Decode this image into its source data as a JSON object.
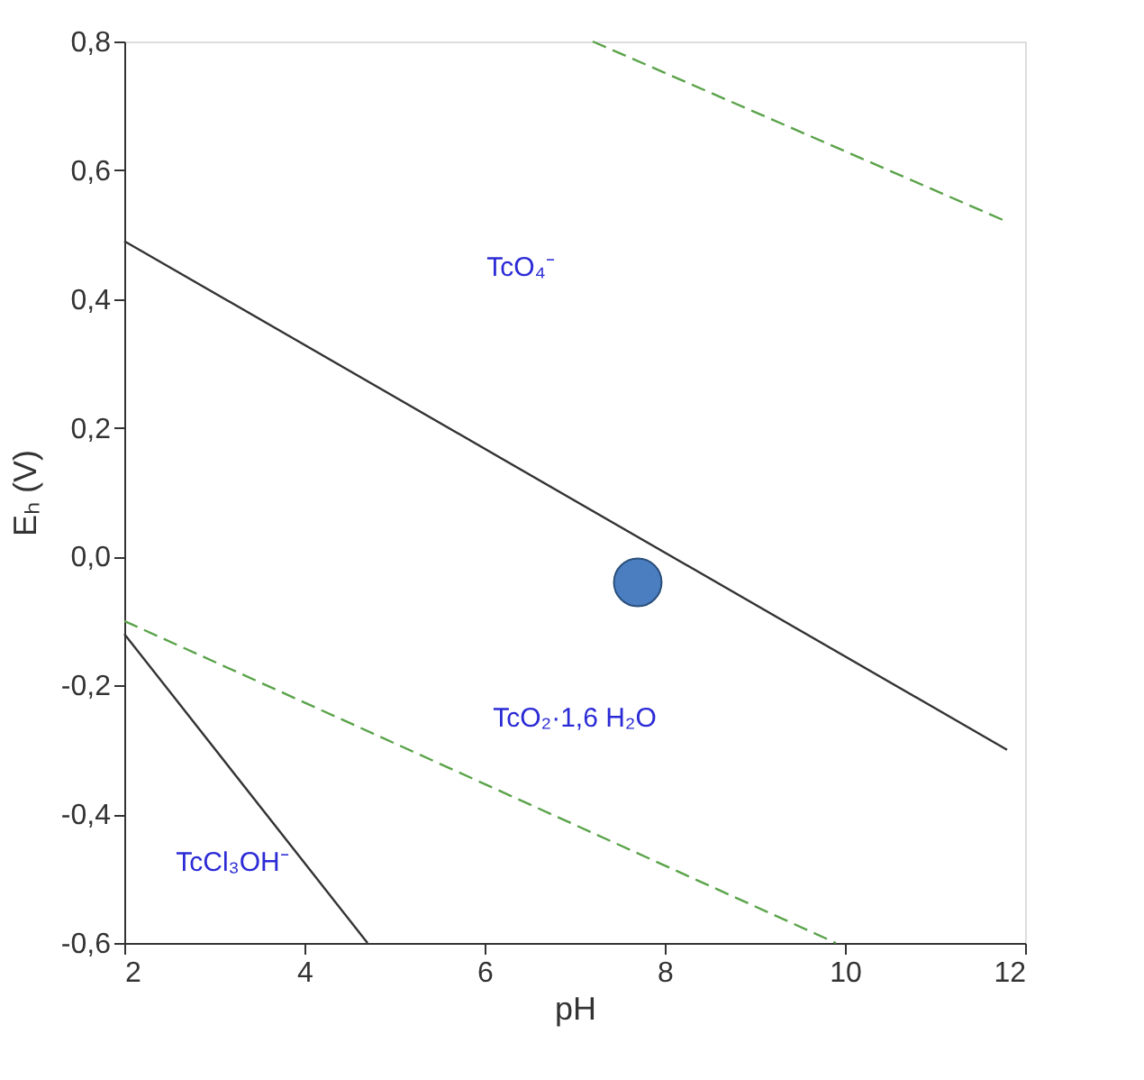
{
  "chart_data": {
    "type": "line",
    "xlabel": "pH",
    "ylabel": "Eₕ (V)",
    "xlim": [
      2,
      12
    ],
    "xticks": [
      2,
      4,
      6,
      8,
      10,
      12
    ],
    "ylim": [
      -0.6,
      0.8
    ],
    "yticks": [
      {
        "value": -0.6,
        "label": "-0,6"
      },
      {
        "value": -0.4,
        "label": "-0,4"
      },
      {
        "value": -0.2,
        "label": "-0,2"
      },
      {
        "value": 0,
        "label": "0,0"
      },
      {
        "value": 0.2,
        "label": "0,2"
      },
      {
        "value": 0.4,
        "label": "0,4"
      },
      {
        "value": 0.6,
        "label": "0,6"
      },
      {
        "value": 0.8,
        "label": "0,8"
      }
    ],
    "grid": false,
    "legend": false,
    "series": [
      {
        "color": "#333333",
        "line_style": "solid",
        "x": [
          2,
          11.8
        ],
        "values": [
          0.49,
          -0.3
        ]
      },
      {
        "color": "#333333",
        "line_style": "solid",
        "x": [
          2,
          4.7
        ],
        "values": [
          -0.12,
          -0.6
        ]
      },
      {
        "color": "#5aa34a",
        "line_style": "dashed",
        "x": [
          7.2,
          11.8
        ],
        "values": [
          0.8,
          0.52
        ]
      },
      {
        "color": "#5aa34a",
        "line_style": "dashed",
        "x": [
          2,
          9.9
        ],
        "values": [
          -0.1,
          -0.6
        ]
      },
      {
        "type": "scatter",
        "color": "#4a7ec0",
        "marker": "circle",
        "x": [
          7.7
        ],
        "values": [
          -0.04
        ]
      }
    ],
    "annotations": [
      "TcO₄⁻",
      "TcO₂·1,6 H₂O",
      "TcCl₃OH⁻"
    ]
  }
}
